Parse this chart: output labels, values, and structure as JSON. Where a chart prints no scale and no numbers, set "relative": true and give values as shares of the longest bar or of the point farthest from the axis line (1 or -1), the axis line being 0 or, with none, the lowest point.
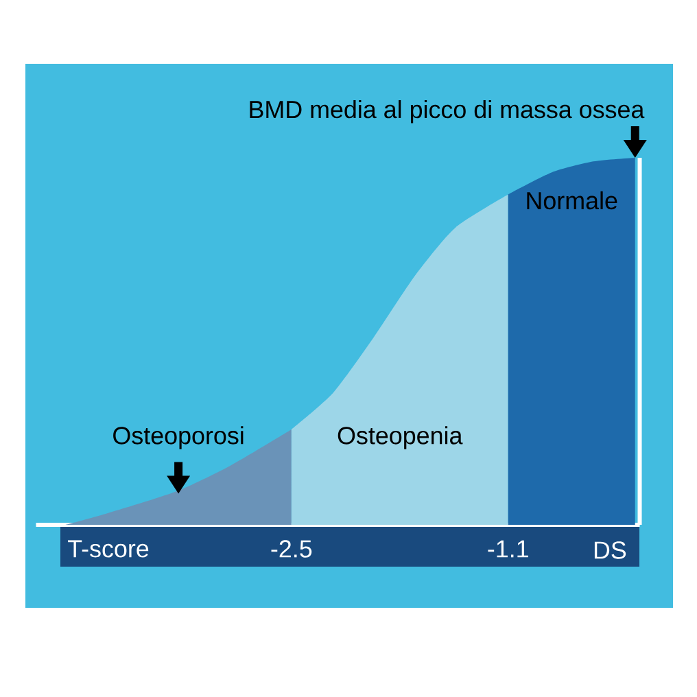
{
  "chart_data": {
    "type": "area",
    "relative": true,
    "xlabel": "T-score",
    "xlim": [
      -4.15,
      -0.25
    ],
    "xticks": [
      -2.5,
      -1.1
    ],
    "annotations": [
      {
        "text": "BMD media al picco di massa ossea",
        "x": -0.28,
        "y": 1.0
      },
      "DS"
    ],
    "series": [
      {
        "name": "Osteoporosi",
        "color": "#6a93b8",
        "x": [
          -3.96,
          -3.7,
          -3.25,
          -2.9,
          -2.5
        ],
        "values": [
          0,
          0.03,
          0.09,
          0.16,
          0.26
        ]
      },
      {
        "name": "Osteopenia",
        "color": "#9dd6e8",
        "x": [
          -2.5,
          -2.23,
          -1.97,
          -1.7,
          -1.44,
          -1.1
        ],
        "values": [
          0.26,
          0.36,
          0.51,
          0.68,
          0.81,
          0.9
        ]
      },
      {
        "name": "Normale",
        "color": "#1e6aab",
        "x": [
          -1.1,
          -0.82,
          -0.55,
          -0.28
        ],
        "values": [
          0.9,
          0.96,
          0.99,
          1.0
        ]
      }
    ]
  }
}
